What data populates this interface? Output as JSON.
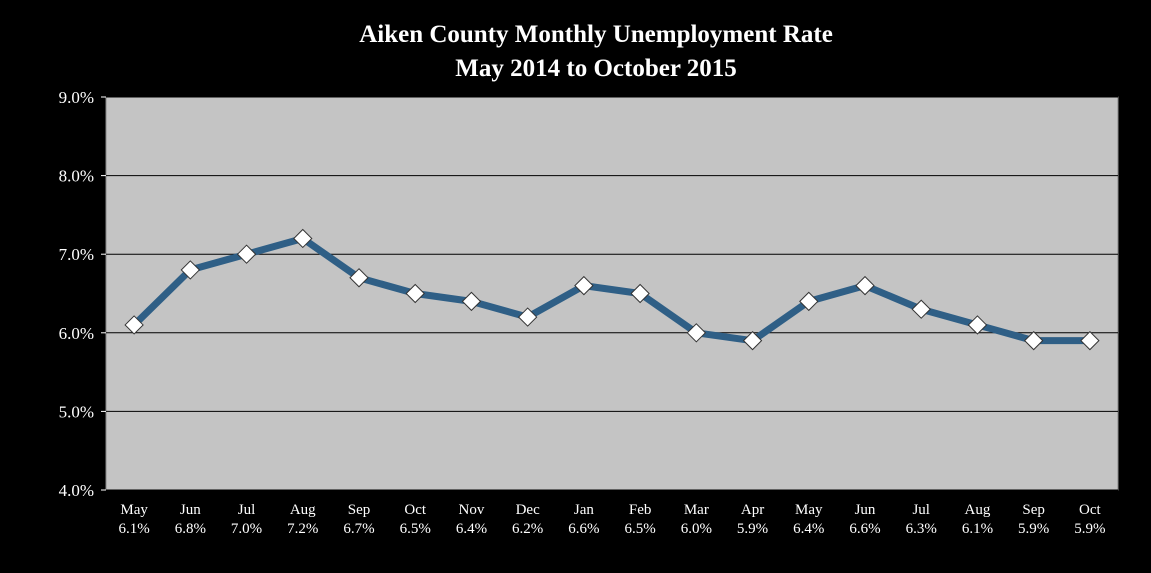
{
  "chart_data": {
    "type": "line",
    "title": "Aiken County Monthly Unemployment Rate",
    "subtitle": "May 2014 to October 2015",
    "categories": [
      "May",
      "Jun",
      "Jul",
      "Aug",
      "Sep",
      "Oct",
      "Nov",
      "Dec",
      "Jan",
      "Feb",
      "Mar",
      "Apr",
      "May",
      "Jun",
      "Jul",
      "Aug",
      "Sep",
      "Oct"
    ],
    "values": [
      6.1,
      6.8,
      7.0,
      7.2,
      6.7,
      6.5,
      6.4,
      6.2,
      6.6,
      6.5,
      6.0,
      5.9,
      6.4,
      6.6,
      6.3,
      6.1,
      5.9,
      5.9
    ],
    "value_labels": [
      "6.1%",
      "6.8%",
      "7.0%",
      "7.2%",
      "6.7%",
      "6.5%",
      "6.4%",
      "6.2%",
      "6.6%",
      "6.5%",
      "6.0%",
      "5.9%",
      "6.4%",
      "6.6%",
      "6.3%",
      "6.1%",
      "5.9%",
      "5.9%"
    ],
    "color": "#2f5f86",
    "ylim": [
      4,
      9
    ],
    "yticks": [
      {
        "value": 4,
        "label": "4.0%"
      },
      {
        "value": 5,
        "label": "5.0%"
      },
      {
        "value": 6,
        "label": "6.0%"
      },
      {
        "value": 7,
        "label": "7.0%"
      },
      {
        "value": 8,
        "label": "8.0%"
      },
      {
        "value": 9,
        "label": "9.0%"
      }
    ],
    "grid": true
  }
}
